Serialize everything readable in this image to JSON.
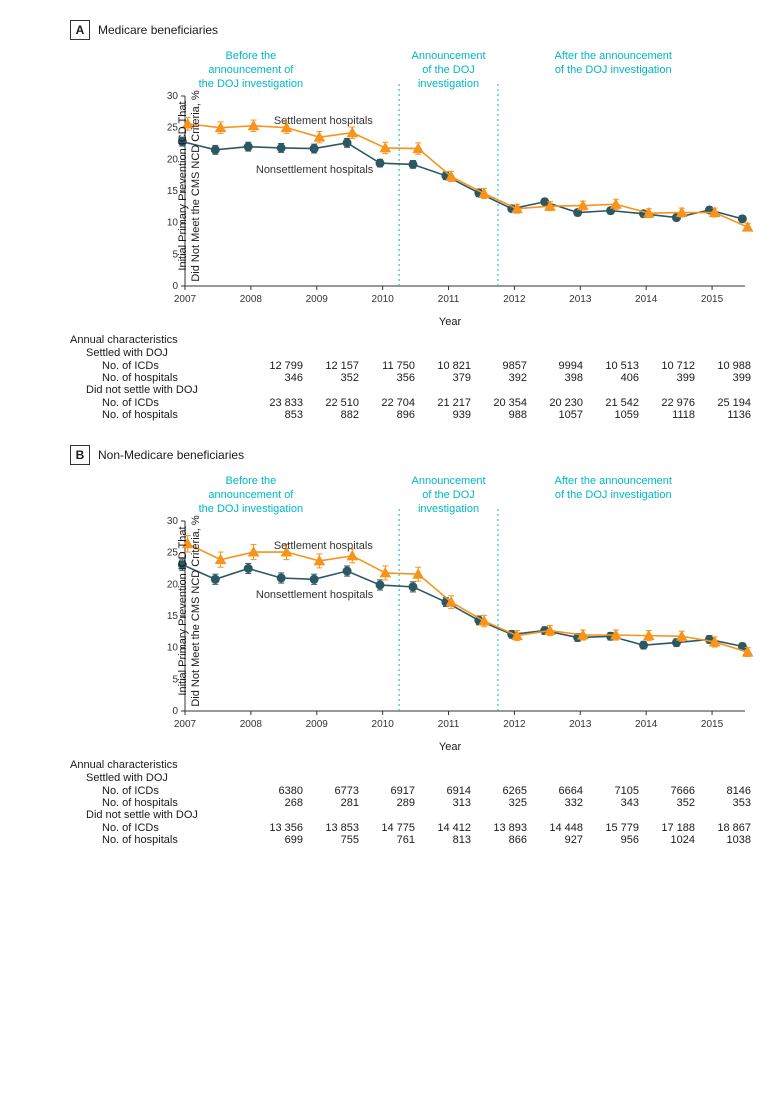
{
  "colors": {
    "settlement": "#f7941d",
    "nonsettlement": "#2b5862",
    "phase_text": "#00b8c4",
    "phase_line": "#00b8c4",
    "axis": "#333333",
    "background": "#ffffff"
  },
  "ylabel": "Initial Primary Prevention ICD That\nDid Not Meet the CMS NCD Criteria, %",
  "xlabel": "Year",
  "ylim": [
    0,
    30
  ],
  "ytick_step": 5,
  "x_years": [
    2007,
    2008,
    2009,
    2010,
    2011,
    2012,
    2013,
    2014,
    2015
  ],
  "label_fontsize": 11,
  "tick_fontsize": 10,
  "marker_size": 4,
  "line_width": 1.6,
  "error_cap": 3,
  "phases": {
    "before": "Before the\nannouncement of\nthe DOJ investigation",
    "during": "Announcement\nof the DOJ\ninvestigation",
    "after": "After the announcement\nof the DOJ investigation"
  },
  "phase_vlines_x": [
    6.5,
    9.5
  ],
  "series_labels": {
    "settlement": "Settlement hospitals",
    "nonsettlement": "Nonsettlement hospitals"
  },
  "table_headers": {
    "annual": "Annual characteristics",
    "settled": "Settled with DOJ",
    "notsettled": "Did not settle with DOJ",
    "icds": "No. of ICDs",
    "hospitals": "No. of hospitals"
  },
  "panels": {
    "A": {
      "title": "Medicare beneficiaries",
      "settlement": {
        "y": [
          25.6,
          25.0,
          25.3,
          25.0,
          23.5,
          24.2,
          21.8,
          21.7,
          17.3,
          14.6,
          12.2,
          12.6,
          12.7,
          12.9,
          11.5,
          11.6,
          11.6,
          9.3
        ],
        "err": [
          1.0,
          0.9,
          0.9,
          0.9,
          0.9,
          0.9,
          0.9,
          0.9,
          0.8,
          0.8,
          0.7,
          0.7,
          0.7,
          0.8,
          0.7,
          0.7,
          0.7,
          0.6
        ]
      },
      "nonsettlement": {
        "y": [
          22.8,
          21.5,
          22.0,
          21.8,
          21.7,
          22.6,
          19.4,
          19.2,
          17.4,
          14.7,
          12.2,
          13.3,
          11.6,
          11.9,
          11.4,
          10.8,
          12.0,
          10.6
        ],
        "err": [
          0.7,
          0.7,
          0.7,
          0.7,
          0.7,
          0.7,
          0.6,
          0.6,
          0.6,
          0.6,
          0.5,
          0.5,
          0.5,
          0.5,
          0.5,
          0.5,
          0.5,
          0.5
        ]
      },
      "table": {
        "settled_icds": [
          "12 799",
          "12 157",
          "11 750",
          "10 821",
          "9857",
          "9994",
          "10 513",
          "10 712",
          "10 988"
        ],
        "settled_hospitals": [
          "346",
          "352",
          "356",
          "379",
          "392",
          "398",
          "406",
          "399",
          "399"
        ],
        "not_icds": [
          "23 833",
          "22 510",
          "22 704",
          "21 217",
          "20 354",
          "20 230",
          "21 542",
          "22 976",
          "25 194"
        ],
        "not_hospitals": [
          "853",
          "882",
          "896",
          "939",
          "988",
          "1057",
          "1059",
          "1118",
          "1136"
        ]
      }
    },
    "B": {
      "title": "Non-Medicare beneficiaries",
      "settlement": {
        "y": [
          26.4,
          23.9,
          25.1,
          25.1,
          23.7,
          24.5,
          21.8,
          21.6,
          17.2,
          14.2,
          11.9,
          12.7,
          12.0,
          12.0,
          11.9,
          11.8,
          10.9,
          9.3
        ],
        "err": [
          1.3,
          1.2,
          1.2,
          1.2,
          1.1,
          1.1,
          1.1,
          1.1,
          1.0,
          0.9,
          0.8,
          0.8,
          0.8,
          0.8,
          0.8,
          0.8,
          0.8,
          0.7
        ]
      },
      "nonsettlement": {
        "y": [
          23.1,
          20.8,
          22.5,
          21.0,
          20.8,
          22.1,
          19.9,
          19.6,
          17.2,
          14.3,
          12.1,
          12.7,
          11.6,
          11.8,
          10.4,
          10.8,
          11.3,
          10.2
        ],
        "err": [
          0.9,
          0.8,
          0.8,
          0.8,
          0.8,
          0.8,
          0.8,
          0.8,
          0.7,
          0.7,
          0.6,
          0.6,
          0.6,
          0.6,
          0.6,
          0.6,
          0.6,
          0.5
        ]
      },
      "table": {
        "settled_icds": [
          "6380",
          "6773",
          "6917",
          "6914",
          "6265",
          "6664",
          "7105",
          "7666",
          "8146"
        ],
        "settled_hospitals": [
          "268",
          "281",
          "289",
          "313",
          "325",
          "332",
          "343",
          "352",
          "353"
        ],
        "not_icds": [
          "13 356",
          "13 853",
          "14 775",
          "14 412",
          "13 893",
          "14 448",
          "15 779",
          "17 188",
          "18 867"
        ],
        "not_hospitals": [
          "699",
          "755",
          "761",
          "813",
          "866",
          "927",
          "956",
          "1024",
          "1038"
        ]
      }
    }
  }
}
